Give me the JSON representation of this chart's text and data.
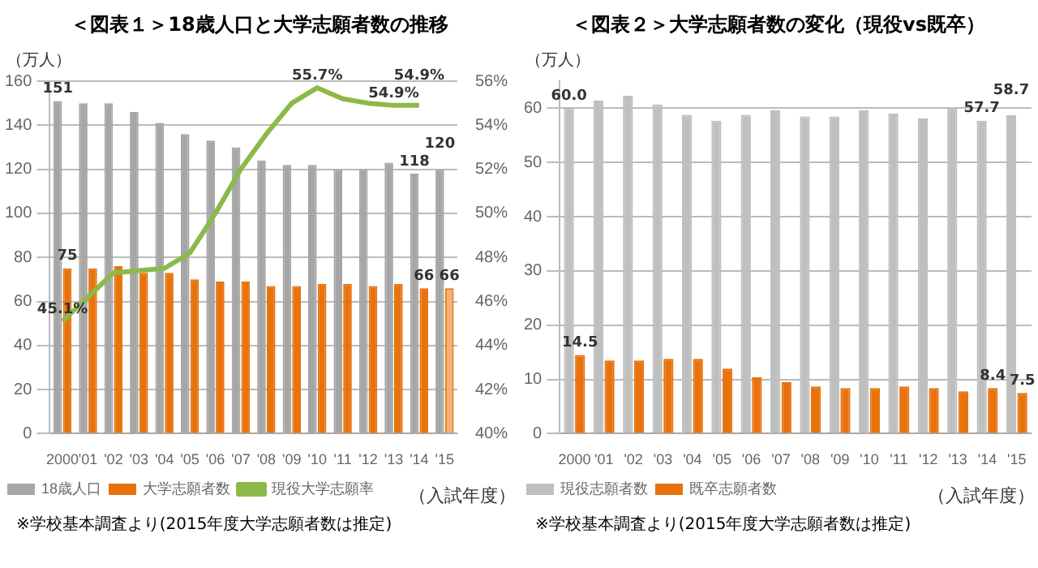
{
  "chart_data": [
    {
      "type": "bar",
      "title": "＜図表１＞18歳人口と大学志願者数の推移",
      "ylabel": "（万人）",
      "xlabel": "（入試年度）",
      "categories": [
        "2000",
        "'01",
        "'02",
        "'03",
        "'04",
        "'05",
        "'06",
        "'07",
        "'08",
        "'09",
        "'10",
        "'11",
        "'12",
        "'13",
        "'14",
        "'15"
      ],
      "series": [
        {
          "name": "18歳人口",
          "color": "#a6a6a6",
          "values": [
            151,
            150,
            150,
            146,
            141,
            136,
            133,
            130,
            124,
            122,
            122,
            120,
            120,
            123,
            118,
            120
          ],
          "value_labels": [
            "151",
            null,
            null,
            null,
            null,
            null,
            null,
            null,
            null,
            null,
            null,
            null,
            null,
            null,
            "118",
            "120"
          ]
        },
        {
          "name": "大学志願者数",
          "color": "#e8720c",
          "colors": [
            "#e8720c",
            "#e8720c",
            "#e8720c",
            "#e8720c",
            "#e8720c",
            "#e8720c",
            "#e8720c",
            "#e8720c",
            "#e8720c",
            "#e8720c",
            "#e8720c",
            "#e8720c",
            "#e8720c",
            "#e8720c",
            "#e8720c",
            "#f3b27a"
          ],
          "values": [
            75,
            75,
            76,
            73,
            73,
            70,
            69,
            69,
            67,
            67,
            68,
            68,
            67,
            68,
            66,
            66
          ],
          "value_labels": [
            "75",
            null,
            null,
            null,
            null,
            null,
            null,
            null,
            null,
            null,
            null,
            null,
            null,
            null,
            "66",
            "66"
          ]
        },
        {
          "name": "現役大学志願率",
          "type": "line",
          "axis": "y2",
          "color": "#8db94a",
          "values": [
            45.1,
            46.2,
            47.3,
            47.4,
            47.5,
            48.2,
            50.0,
            52.0,
            53.6,
            55.0,
            55.7,
            55.2,
            55.0,
            54.9,
            54.9,
            null
          ],
          "value_labels": [
            "45.1%",
            null,
            null,
            null,
            null,
            null,
            null,
            null,
            null,
            null,
            "55.7%",
            null,
            null,
            "54.9%",
            "54.9%",
            null
          ]
        }
      ],
      "ylim": [
        0,
        160
      ],
      "yticks": [
        0,
        20,
        40,
        60,
        80,
        100,
        120,
        140,
        160
      ],
      "y2lim": [
        40,
        56
      ],
      "y2ticks": [
        {
          "value": 40,
          "label": "40%"
        },
        {
          "value": 42,
          "label": "42%"
        },
        {
          "value": 44,
          "label": "44%"
        },
        {
          "value": 46,
          "label": "46%"
        },
        {
          "value": 48,
          "label": "48%"
        },
        {
          "value": 50,
          "label": "50%"
        },
        {
          "value": 52,
          "label": "52%"
        },
        {
          "value": 54,
          "label": "54%"
        },
        {
          "value": 56,
          "label": "56%"
        }
      ],
      "grid": "y",
      "legend": "bottom",
      "marker": "none",
      "annotations": [
        "※学校基本調査より(2015年度大学志願者数は推定)"
      ]
    },
    {
      "type": "bar",
      "title": "＜図表２＞大学志願者数の変化（現役vs既卒）",
      "ylabel": "（万人）",
      "xlabel": "（入試年度）",
      "categories": [
        "2000",
        "'01",
        "'02",
        "'03",
        "'04",
        "'05",
        "'06",
        "'07",
        "'08",
        "'09",
        "'10",
        "'11",
        "'12",
        "'13",
        "'14",
        "'15"
      ],
      "series": [
        {
          "name": "現役志願者数",
          "color": "#bfbfbf",
          "values": [
            60.0,
            61.4,
            62.3,
            60.7,
            58.8,
            57.7,
            58.8,
            59.6,
            58.5,
            58.5,
            59.6,
            59.0,
            58.1,
            60.0,
            57.7,
            58.7
          ],
          "value_labels": [
            "60.0",
            null,
            null,
            null,
            null,
            null,
            null,
            null,
            null,
            null,
            null,
            null,
            null,
            null,
            "57.7",
            "58.7"
          ]
        },
        {
          "name": "既卒志願者数",
          "color": "#e8720c",
          "values": [
            14.5,
            13.5,
            13.5,
            13.8,
            13.8,
            12.0,
            10.4,
            9.5,
            8.7,
            8.4,
            8.4,
            8.7,
            8.4,
            7.8,
            8.4,
            7.5
          ],
          "value_labels": [
            "14.5",
            null,
            null,
            null,
            null,
            null,
            null,
            null,
            null,
            null,
            null,
            null,
            null,
            null,
            "8.4",
            "7.5"
          ]
        }
      ],
      "ylim": [
        0,
        65
      ],
      "yticks": [
        0,
        10,
        20,
        30,
        40,
        50,
        60
      ],
      "grid": "y",
      "legend": "bottom",
      "annotations": [
        "※学校基本調査より(2015年度大学志願者数は推定)"
      ]
    }
  ]
}
